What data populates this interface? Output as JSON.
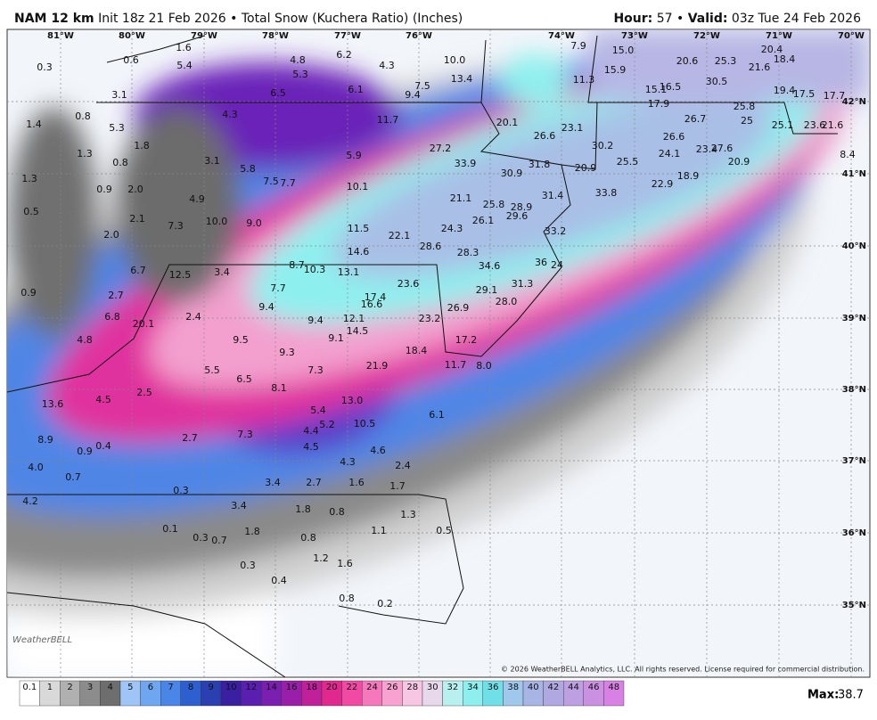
{
  "header": {
    "model": "NAM 12 km",
    "init": "Init 18z 21 Feb 2026",
    "bullet": "•",
    "product": "Total Snow (Kuchera Ratio) (Inches)",
    "hour_label": "Hour:",
    "hour": "57",
    "valid_label": "Valid:",
    "valid": "03z Tue 24 Feb 2026"
  },
  "map": {
    "lon_labels": [
      "81°W",
      "80°W",
      "79°W",
      "78°W",
      "77°W",
      "76°W",
      "74°W",
      "73°W",
      "72°W",
      "71°W",
      "70°W"
    ],
    "lat_labels": [
      "42°N",
      "41°N",
      "40°N",
      "39°N",
      "38°N",
      "37°N",
      "36°N",
      "35°N"
    ],
    "labels": [
      "0.3",
      "0.6",
      "1.6",
      "5.4",
      "4.8",
      "5.3",
      "6.2",
      "4.3",
      "10.0",
      "7.9",
      "15.0",
      "20.6",
      "25.3",
      "21.6",
      "20.4",
      "18.4",
      "3.1",
      "6.5",
      "6.1",
      "9.4",
      "7.5",
      "13.4",
      "11.3",
      "15.9",
      "30.5",
      "15.1",
      "16.5",
      "19.4",
      "17.5",
      "17.7",
      "1.4",
      "0.8",
      "5.3",
      "4.3",
      "11.7",
      "20.1",
      "17.9",
      "26.7",
      "25.8",
      "25",
      "25.1",
      "23.6",
      "21.6",
      "1.8",
      "26.6",
      "23.1",
      "26.6",
      "1.3",
      "0.8",
      "3.1",
      "5.8",
      "5.9",
      "27.2",
      "30.2",
      "24.1",
      "25.5",
      "23.4",
      "27.6",
      "20.9",
      "8.4",
      "1.3",
      "33.9",
      "30.9",
      "31.8",
      "20.9",
      "7.5",
      "7.7",
      "10.1",
      "18.9",
      "22.9",
      "0.9",
      "2.0",
      "4.9",
      "21.1",
      "31.4",
      "33.8",
      "0.5",
      "25.8",
      "28.9",
      "2.1",
      "7.3",
      "10.0",
      "9.0",
      "26.1",
      "29.6",
      "11.5",
      "24.3",
      "33.2",
      "2.0",
      "22.1",
      "14.6",
      "28.6",
      "28.3",
      "6.7",
      "12.5",
      "3.4",
      "8.7",
      "10.3",
      "13.1",
      "34.6",
      "36",
      "24",
      "31.3",
      "23.6",
      "0.9",
      "2.7",
      "7.7",
      "17.4",
      "29.1",
      "28.0",
      "16.6",
      "26.9",
      "9.4",
      "6.8",
      "20.1",
      "2.4",
      "9.4",
      "12.1",
      "23.2",
      "14.5",
      "9.1",
      "17.2",
      "4.8",
      "9.5",
      "9.3",
      "18.4",
      "11.7",
      "8.0",
      "21.9",
      "5.5",
      "7.3",
      "6.5",
      "8.1",
      "2.5",
      "4.5",
      "13.0",
      "13.6",
      "5.4",
      "6.1",
      "5.2",
      "10.5",
      "4.4",
      "7.3",
      "2.7",
      "8.9",
      "0.4",
      "0.9",
      "4.5",
      "4.6",
      "4.3",
      "4.0",
      "2.4",
      "0.7",
      "3.4",
      "2.7",
      "1.6",
      "1.7",
      "0.3",
      "4.2",
      "3.4",
      "1.8",
      "0.8",
      "1.3",
      "0.1",
      "0.3",
      "0.7",
      "1.8",
      "1.1",
      "0.5",
      "0.8",
      "1.2",
      "1.6",
      "0.3",
      "0.4",
      "0.8",
      "0.2"
    ],
    "logo": "WeatherBELL",
    "copyright": "© 2026 WeatherBELL Analytics, LLC. All rights reserved. License required for commercial distribution."
  },
  "legend": {
    "ticks": [
      0.1,
      1,
      2,
      3,
      4,
      5,
      6,
      7,
      8,
      9,
      10,
      12,
      14,
      16,
      18,
      20,
      22,
      24,
      26,
      28,
      30,
      32,
      34,
      36,
      38,
      40,
      42,
      44,
      46,
      48
    ],
    "max_label": "Max:",
    "max": 38.7
  }
}
